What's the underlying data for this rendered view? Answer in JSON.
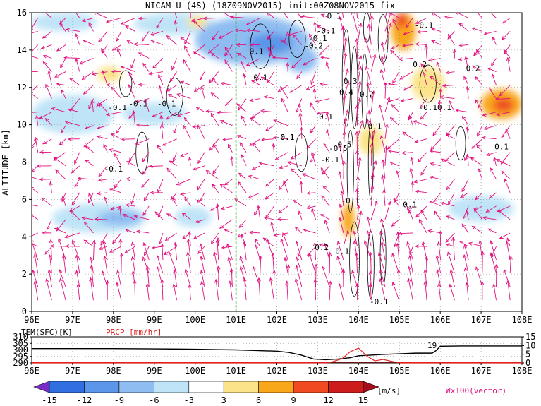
{
  "chart_data": [
    {
      "type": "heatmap",
      "title": "NICAM U (4S) (18Z09NOV2015) init:00Z08NOV2015 fix",
      "xlabel": "",
      "ylabel": "ALTITUDE [km]",
      "xlim": [
        96,
        108
      ],
      "ylim": [
        0,
        16
      ],
      "x_ticks": [
        "96E",
        "97E",
        "98E",
        "99E",
        "100E",
        "101E",
        "102E",
        "103E",
        "104E",
        "105E",
        "106E",
        "107E",
        "108E"
      ],
      "y_ticks": [
        "0",
        "2",
        "4",
        "6",
        "8",
        "10",
        "12",
        "14",
        "16"
      ],
      "reference_line_lon": 101,
      "grid": true,
      "shaded_regions": [
        {
          "lon": [
            96.0,
            97.6
          ],
          "alt": [
            15.0,
            16.0
          ],
          "u": -6
        },
        {
          "lon": [
            98.5,
            100.5
          ],
          "alt": [
            14.8,
            16.0
          ],
          "u": -6
        },
        {
          "lon": [
            100.0,
            102.8
          ],
          "alt": [
            13.2,
            15.8
          ],
          "u": -9
        },
        {
          "lon": [
            101.3,
            102.4
          ],
          "alt": [
            13.8,
            14.9
          ],
          "u": -12
        },
        {
          "lon": [
            96.0,
            98.0
          ],
          "alt": [
            9.5,
            11.6
          ],
          "u": -6
        },
        {
          "lon": [
            98.2,
            99.8
          ],
          "alt": [
            10.0,
            11.2
          ],
          "u": -6
        },
        {
          "lon": [
            96.5,
            98.8
          ],
          "alt": [
            4.2,
            5.8
          ],
          "u": -6
        },
        {
          "lon": [
            97.6,
            98.7
          ],
          "alt": [
            4.6,
            5.4
          ],
          "u": -9
        },
        {
          "lon": [
            102.2,
            103.0
          ],
          "alt": [
            12.8,
            14.2
          ],
          "u": -9
        },
        {
          "lon": [
            99.5,
            100.4
          ],
          "alt": [
            4.5,
            5.6
          ],
          "u": -6
        },
        {
          "lon": [
            106.2,
            107.8
          ],
          "alt": [
            4.8,
            6.2
          ],
          "u": -6
        },
        {
          "lon": [
            103.6,
            103.9
          ],
          "alt": [
            4.0,
            5.8
          ],
          "u": 6
        },
        {
          "lon": [
            104.8,
            105.4
          ],
          "alt": [
            14.0,
            16.0
          ],
          "u": 6
        },
        {
          "lon": [
            104.9,
            105.2
          ],
          "alt": [
            15.2,
            16.0
          ],
          "u": 9
        },
        {
          "lon": [
            107.0,
            108.0
          ],
          "alt": [
            10.3,
            11.9
          ],
          "u": 6
        },
        {
          "lon": [
            107.3,
            107.8
          ],
          "alt": [
            10.7,
            11.4
          ],
          "u": 9
        },
        {
          "lon": [
            105.3,
            106.1
          ],
          "alt": [
            11.3,
            13.1
          ],
          "u": 3
        },
        {
          "lon": [
            104.0,
            104.6
          ],
          "alt": [
            8.4,
            9.9
          ],
          "u": 3
        },
        {
          "lon": [
            97.6,
            98.2
          ],
          "alt": [
            12.3,
            13.1
          ],
          "u": 3
        },
        {
          "lon": [
            99.8,
            100.3
          ],
          "alt": [
            15.2,
            15.8
          ],
          "u": 3
        }
      ],
      "contour_labels": [
        {
          "lon": 98.1,
          "alt": 10.9,
          "text": "-0.1"
        },
        {
          "lon": 98.6,
          "alt": 11.1,
          "text": "-0.1"
        },
        {
          "lon": 99.3,
          "alt": 11.1,
          "text": "-0.1"
        },
        {
          "lon": 101.5,
          "alt": 13.9,
          "text": "0.1"
        },
        {
          "lon": 101.6,
          "alt": 12.5,
          "text": "0.1"
        },
        {
          "lon": 103.0,
          "alt": 14.6,
          "text": "-0.1"
        },
        {
          "lon": 102.9,
          "alt": 14.2,
          "text": "-0.2"
        },
        {
          "lon": 103.2,
          "alt": 15.0,
          "text": "-0.1"
        },
        {
          "lon": 103.8,
          "alt": 12.3,
          "text": "0.3"
        },
        {
          "lon": 103.7,
          "alt": 11.7,
          "text": "0.4"
        },
        {
          "lon": 103.2,
          "alt": 10.4,
          "text": "0.1"
        },
        {
          "lon": 104.2,
          "alt": 11.6,
          "text": "0.2"
        },
        {
          "lon": 105.5,
          "alt": 13.2,
          "text": "0.2"
        },
        {
          "lon": 105.7,
          "alt": 10.9,
          "text": "-0.1"
        },
        {
          "lon": 106.1,
          "alt": 10.9,
          "text": "0.1"
        },
        {
          "lon": 104.4,
          "alt": 9.9,
          "text": "0.1"
        },
        {
          "lon": 103.5,
          "alt": 8.7,
          "text": "-0.5"
        },
        {
          "lon": 102.2,
          "alt": 9.3,
          "text": "-0.1"
        },
        {
          "lon": 103.3,
          "alt": 8.1,
          "text": "-0.1"
        },
        {
          "lon": 102.2,
          "alt": 9.3,
          "text": "-0.1"
        },
        {
          "lon": 98.0,
          "alt": 7.6,
          "text": "-0.1"
        },
        {
          "lon": 103.6,
          "alt": 8.9,
          "text": "-0.5"
        },
        {
          "lon": 103.8,
          "alt": 5.9,
          "text": "-0.1"
        },
        {
          "lon": 105.2,
          "alt": 5.7,
          "text": "-0.1"
        },
        {
          "lon": 103.1,
          "alt": 3.4,
          "text": "0.2"
        },
        {
          "lon": 103.6,
          "alt": 3.2,
          "text": "0.1"
        },
        {
          "lon": 104.5,
          "alt": 0.5,
          "text": "-0.1"
        },
        {
          "lon": 107.5,
          "alt": 8.8,
          "text": "0.1"
        },
        {
          "lon": 105.6,
          "alt": 15.3,
          "text": "-0.1"
        },
        {
          "lon": 103.4,
          "alt": 15.8,
          "text": "0.1"
        },
        {
          "lon": 106.8,
          "alt": 13.0,
          "text": "0.2"
        }
      ],
      "vector_field": {
        "name": "Wx100(vector)",
        "color": "#e0107d"
      },
      "colorbar": {
        "unit": "[m/s]",
        "levels": [
          "-15",
          "-12",
          "-9",
          "-6",
          "-3",
          "3",
          "6",
          "9",
          "12",
          "15"
        ],
        "colors": [
          "#7a2cc8",
          "#2f6fe0",
          "#5b96ea",
          "#8fbdf2",
          "#bfe4f7",
          "#ffffff",
          "#fbe389",
          "#f8a71b",
          "#ef4a22",
          "#cc1c1c",
          "#a50f1d"
        ]
      }
    },
    {
      "type": "line",
      "title": "",
      "xlim": [
        96,
        108
      ],
      "x_ticks": [
        "96E",
        "97E",
        "98E",
        "99E",
        "100E",
        "101E",
        "102E",
        "103E",
        "104E",
        "105E",
        "106E",
        "107E",
        "108E"
      ],
      "left_axis": {
        "label": "TEM(SFC)[K]",
        "ticks": [
          "290",
          "295",
          "300",
          "305",
          "310"
        ],
        "range": [
          290,
          310
        ]
      },
      "right_axis": {
        "label": "PRCP [mm/hr]",
        "ticks": [
          "0",
          "5",
          "10",
          "15"
        ],
        "range": [
          0,
          15
        ]
      },
      "series": [
        {
          "name": "TEM(SFC)[K]",
          "color": "#000000",
          "x": [
            96.0,
            97.0,
            98.0,
            99.0,
            100.0,
            100.5,
            101.0,
            101.5,
            102.0,
            102.3,
            102.6,
            102.9,
            103.2,
            103.5,
            103.8,
            104.0,
            104.3,
            104.6,
            105.0,
            105.4,
            105.8,
            105.9,
            106.0,
            106.5,
            107.0,
            108.0
          ],
          "values": [
            301.0,
            301.0,
            301.0,
            300.8,
            300.5,
            300.2,
            300.0,
            299.5,
            299.0,
            298.0,
            296.0,
            293.0,
            292.5,
            293.0,
            294.0,
            295.5,
            296.0,
            296.5,
            297.0,
            297.5,
            297.5,
            299.5,
            302.8,
            303.0,
            303.0,
            303.0
          ]
        },
        {
          "name": "PRCP [mm/hr]",
          "color": "#e02020",
          "x": [
            96.0,
            103.0,
            103.3,
            103.6,
            103.8,
            104.0,
            104.2,
            104.4,
            104.6,
            104.8,
            105.0,
            108.0
          ],
          "values": [
            0.0,
            0.0,
            0.2,
            2.5,
            6.5,
            8.5,
            4.0,
            1.2,
            2.0,
            1.0,
            0.0,
            0.0
          ]
        }
      ],
      "annotations": [
        "19"
      ]
    }
  ]
}
